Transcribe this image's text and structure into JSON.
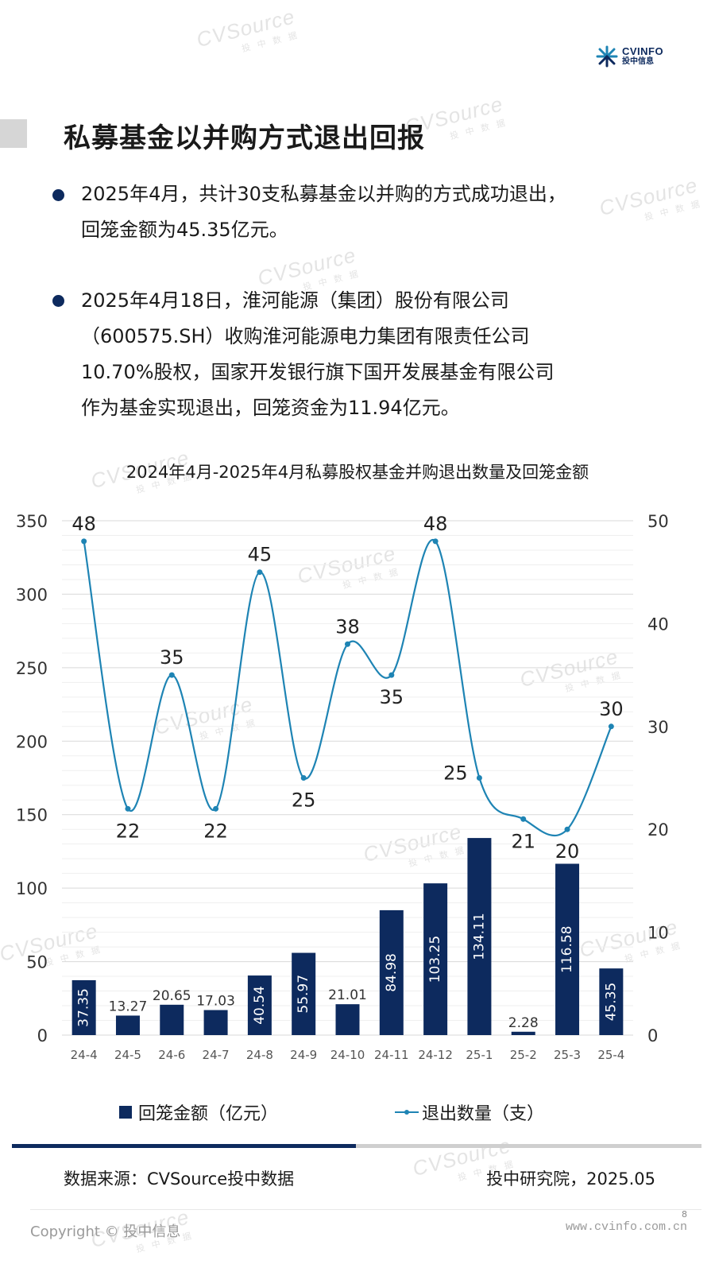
{
  "logo": {
    "en": "CVINFO",
    "cn": "投中信息"
  },
  "watermark": {
    "text": "CVSource",
    "sub": "投 中 数 据"
  },
  "title": "私募基金以并购方式退出回报",
  "bullets": [
    {
      "lines": [
        "2025年4月，共计30支私募基金以并购的方式成功退出，",
        "回笼金额为45.35亿元。"
      ]
    },
    {
      "lines": [
        "2025年4月18日，淮河能源（集团）股份有限公司",
        "（600575.SH）收购淮河能源电力集团有限责任公司",
        "10.70%股权，国家开发银行旗下国开发展基金有限公司",
        "作为基金实现退出，回笼资金为11.94亿元。"
      ]
    }
  ],
  "chart_data": {
    "type": "bar",
    "title": "2024年4月-2025年4月私募股权基金并购退出数量及回笼金额",
    "categories": [
      "24-4",
      "24-5",
      "24-6",
      "24-7",
      "24-8",
      "24-9",
      "24-10",
      "24-11",
      "24-12",
      "25-1",
      "25-2",
      "25-3",
      "25-4"
    ],
    "series": [
      {
        "name": "回笼金额（亿元）",
        "type": "bar",
        "axis": "left",
        "color": "#0d2a5e",
        "values": [
          37.35,
          13.27,
          20.65,
          17.03,
          40.54,
          55.97,
          21.01,
          84.98,
          103.25,
          134.11,
          2.28,
          116.58,
          45.35
        ],
        "labels": [
          "37.35",
          "13.27",
          "20.65",
          "17.03",
          "40.54",
          "55.97",
          "21.01",
          "84.98",
          "103.25",
          "134.11",
          "2.28",
          "116.58",
          "45.35"
        ]
      },
      {
        "name": "退出数量（支）",
        "type": "line",
        "smooth": true,
        "axis": "right",
        "color": "#1e84b4",
        "values": [
          48,
          22,
          35,
          22,
          45,
          25,
          38,
          35,
          48,
          25,
          21,
          20,
          30
        ]
      }
    ],
    "y_left": {
      "min": 0,
      "max": 350,
      "ticks": [
        "0",
        "50",
        "100",
        "150",
        "200",
        "250",
        "300",
        "350"
      ]
    },
    "y_right": {
      "min": 0,
      "max": 50,
      "ticks": [
        "0",
        "10",
        "20",
        "30",
        "40",
        "50"
      ]
    },
    "grid": true,
    "legend_position": "bottom"
  },
  "footer": {
    "source": "数据来源：CVSource投中数据",
    "institute": "投中研究院，2025.05",
    "copyright": "Copyright © 投中信息",
    "page": "8",
    "url": "www.cvinfo.com.cn"
  }
}
